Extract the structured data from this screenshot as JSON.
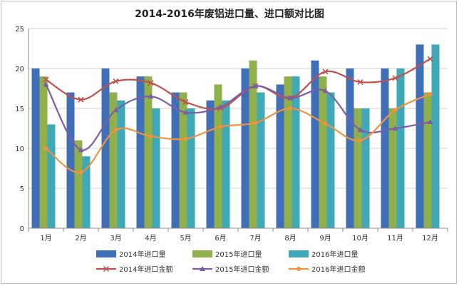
{
  "chart_data": {
    "type": "bar",
    "title": "2014-2016年废铝进口量、进口额对比图",
    "categories": [
      "1月",
      "2月",
      "3月",
      "4月",
      "5月",
      "6月",
      "7月",
      "8月",
      "9月",
      "10月",
      "11月",
      "12月"
    ],
    "ylim": [
      0,
      25
    ],
    "yticks": [
      0,
      5,
      10,
      15,
      20,
      25
    ],
    "grid": "horizontal",
    "legend_position": "bottom",
    "bar_series": [
      {
        "name": "2014年进口量",
        "color": "#3f6fb8",
        "values": [
          20,
          17,
          20,
          19,
          17,
          16,
          20,
          18,
          21,
          20,
          20,
          23
        ]
      },
      {
        "name": "2015年进口量",
        "color": "#8fb04a",
        "values": [
          19,
          11,
          17,
          19,
          17,
          18,
          21,
          19,
          19,
          15,
          15,
          17
        ]
      },
      {
        "name": "2016年进口量",
        "color": "#3fa9b8",
        "values": [
          13,
          9,
          16,
          15,
          15,
          16,
          17,
          19,
          17,
          15,
          20,
          23
        ]
      }
    ],
    "line_series": [
      {
        "name": "2014年进口金额",
        "color": "#c0504d",
        "marker": "x",
        "values": [
          18.6,
          16.1,
          18.4,
          18.2,
          15.8,
          15.0,
          17.8,
          16.3,
          19.6,
          18.3,
          18.8,
          21.2
        ]
      },
      {
        "name": "2015年进口金额",
        "color": "#7b5ea7",
        "marker": "triangle",
        "values": [
          18.0,
          9.8,
          14.8,
          16.5,
          14.5,
          15.2,
          17.8,
          16.3,
          17.2,
          12.3,
          12.5,
          13.3
        ]
      },
      {
        "name": "2016年进口金额",
        "color": "#f0923e",
        "marker": "circle",
        "values": [
          10.0,
          7.0,
          12.3,
          11.5,
          11.2,
          12.7,
          13.2,
          15.0,
          13.1,
          11.0,
          14.8,
          16.8
        ]
      }
    ]
  }
}
